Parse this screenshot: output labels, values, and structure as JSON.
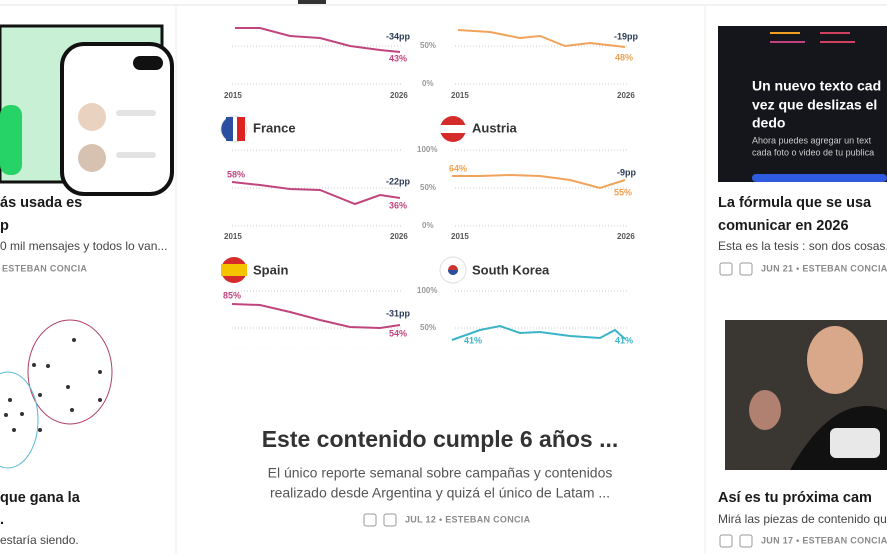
{
  "left_card_top": {
    "title": [
      "ás usada es",
      "p"
    ],
    "subtitle": "0 mil mensajes y todos lo van...",
    "meta": "ESTEBAN CONCIA"
  },
  "left_card_bottom": {
    "title": [
      "que gana la",
      "."
    ],
    "subtitle": "estaría siendo."
  },
  "center_card": {
    "image": {
      "top_left": [
        "-34pp",
        "43%",
        "2015",
        "2026"
      ],
      "top_axis": [
        "50%",
        "0%"
      ],
      "top_right": [
        "-19pp",
        "48%",
        "2015",
        "2026"
      ],
      "france": {
        "name": "France",
        "start": "58%",
        "change": "-22pp",
        "end": "36%",
        "years": [
          "2015",
          "2026"
        ]
      },
      "austria": {
        "name": "Austria",
        "start": "64%",
        "change": "-9pp",
        "end": "55%",
        "years": [
          "2015",
          "2026"
        ]
      },
      "middle_axis": [
        "100%",
        "50%",
        "0%"
      ],
      "spain": {
        "name": "Spain",
        "start": "85%",
        "change": "-31pp",
        "end": "54%"
      },
      "south_korea": {
        "name": "South Korea",
        "start": "41%",
        "end": "41%"
      },
      "bottom_axis": [
        "100%",
        "50%"
      ]
    },
    "title": "Este contenido cumple 6 años ...",
    "subtitle": [
      "El único reporte semanal sobre campañas y contenidos",
      "realizado desde Argentina y quizá el único de Latam ..."
    ],
    "meta": "JUL 12 • ESTEBAN CONCIA"
  },
  "right_card_top": {
    "image_text": [
      "Un nuevo texto cad",
      "vez que deslizas el",
      "dedo"
    ],
    "image_subtext": [
      "Ahora puedes agregar un text",
      "cada foto o video de tu publica"
    ],
    "title": [
      "La fórmula que se usa",
      "comunicar en 2026"
    ],
    "subtitle": "Esta es la tesis : son dos cosas.",
    "meta": "JUN 21 • ESTEBAN CONCIA"
  },
  "right_card_bottom": {
    "title": [
      "Así es tu próxima cam"
    ],
    "subtitle": "Mirá las piezas de contenido que",
    "meta": "JUN 17 • ESTEBAN CONCIA"
  }
}
